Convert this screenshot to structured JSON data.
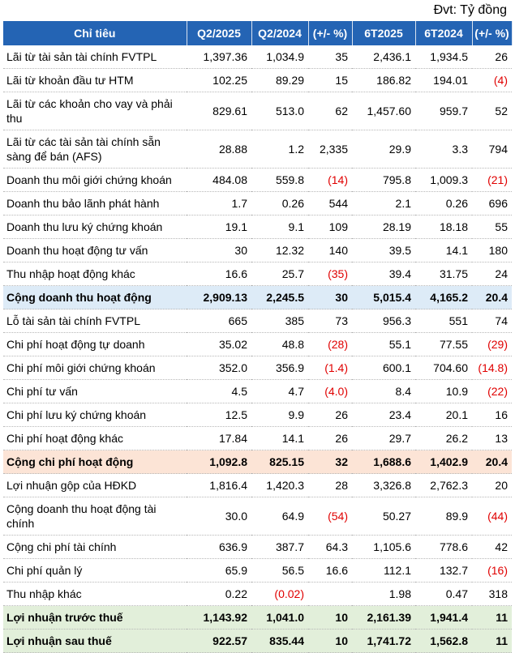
{
  "unit_label": "Đvt: Tỷ đồng",
  "headers": [
    "Chỉ tiêu",
    "Q2/2025",
    "Q2/2024",
    "(+/- %)",
    "6T2025",
    "6T2024",
    "(+/- %)"
  ],
  "rows": [
    {
      "cells": [
        "Lãi từ tài sản tài chính FVTPL",
        "1,397.36",
        "1,034.9",
        "35",
        "2,436.1",
        "1,934.5",
        "26"
      ],
      "style": "",
      "h": "h1",
      "neg": []
    },
    {
      "cells": [
        "Lãi từ khoản đầu tư HTM",
        "102.25",
        "89.29",
        "15",
        "186.82",
        "194.01",
        "(4)"
      ],
      "style": "",
      "h": "h1",
      "neg": [
        6
      ]
    },
    {
      "cells": [
        "Lãi từ các khoản cho vay và phải thu",
        "829.61",
        "513.0",
        "62",
        "1,457.60",
        "959.7",
        "52"
      ],
      "style": "",
      "h": "h2",
      "neg": []
    },
    {
      "cells": [
        "Lãi từ các tài sản tài chính sẵn sàng để bán (AFS)",
        "28.88",
        "1.2",
        "2,335",
        "29.9",
        "3.3",
        "794"
      ],
      "style": "",
      "h": "h2",
      "neg": []
    },
    {
      "cells": [
        "Doanh thu môi giới chứng khoán",
        "484.08",
        "559.8",
        "(14)",
        "795.8",
        "1,009.3",
        "(21)"
      ],
      "style": "",
      "h": "h1",
      "neg": [
        3,
        6
      ]
    },
    {
      "cells": [
        "Doanh thu bảo lãnh phát hành",
        "1.7",
        "0.26",
        "544",
        "2.1",
        "0.26",
        "696"
      ],
      "style": "",
      "h": "h1",
      "neg": []
    },
    {
      "cells": [
        "Doanh thu lưu ký chứng khoán",
        "19.1",
        "9.1",
        "109",
        "28.19",
        "18.18",
        "55"
      ],
      "style": "",
      "h": "h1",
      "neg": []
    },
    {
      "cells": [
        "Doanh thu hoạt động tư vấn",
        "30",
        "12.32",
        "140",
        "39.5",
        "14.1",
        "180"
      ],
      "style": "",
      "h": "h1",
      "neg": []
    },
    {
      "cells": [
        "Thu nhập hoạt động khác",
        "16.6",
        "25.7",
        "(35)",
        "39.4",
        "31.75",
        "24"
      ],
      "style": "",
      "h": "h1",
      "neg": [
        3
      ]
    },
    {
      "cells": [
        "Cộng doanh thu hoạt động",
        "2,909.13",
        "2,245.5",
        "30",
        "5,015.4",
        "4,165.2",
        "20.4"
      ],
      "style": "blue",
      "h": "h3",
      "neg": []
    },
    {
      "cells": [
        "Lỗ tài sản tài chính FVTPL",
        "665",
        "385",
        "73",
        "956.3",
        "551",
        "74"
      ],
      "style": "",
      "h": "h1",
      "neg": []
    },
    {
      "cells": [
        "Chi phí hoạt động tự doanh",
        "35.02",
        "48.8",
        "(28)",
        "55.1",
        "77.55",
        "(29)"
      ],
      "style": "",
      "h": "h1",
      "neg": [
        3,
        6
      ]
    },
    {
      "cells": [
        "Chi phí môi giới chứng khoán",
        "352.0",
        "356.9",
        "(1.4)",
        "600.1",
        "704.60",
        "(14.8)"
      ],
      "style": "",
      "h": "h1",
      "neg": [
        3,
        6
      ]
    },
    {
      "cells": [
        "Chi phí tư vấn",
        "4.5",
        "4.7",
        "(4.0)",
        "8.4",
        "10.9",
        "(22)"
      ],
      "style": "",
      "h": "h1",
      "neg": [
        3,
        6
      ]
    },
    {
      "cells": [
        "Chi phí lưu ký chứng khoán",
        "12.5",
        "9.9",
        "26",
        "23.4",
        "20.1",
        "16"
      ],
      "style": "",
      "h": "h1",
      "neg": []
    },
    {
      "cells": [
        "Chi phí hoạt động khác",
        "17.84",
        "14.1",
        "26",
        "29.7",
        "26.2",
        "13"
      ],
      "style": "",
      "h": "h1",
      "neg": []
    },
    {
      "cells": [
        "Cộng chi phí hoạt động",
        "1,092.8",
        "825.15",
        "32",
        "1,688.6",
        "1,402.9",
        "20.4"
      ],
      "style": "peach",
      "h": "h3",
      "neg": []
    },
    {
      "cells": [
        "Lợi nhuận gộp của HĐKD",
        "1,816.4",
        "1,420.3",
        "28",
        "3,326.8",
        "2,762.3",
        "20"
      ],
      "style": "",
      "h": "h1",
      "neg": []
    },
    {
      "cells": [
        "Cộng doanh thu hoạt động tài chính",
        "30.0",
        "64.9",
        "(54)",
        "50.27",
        "89.9",
        "(44)"
      ],
      "style": "",
      "h": "h2",
      "neg": [
        3,
        6
      ]
    },
    {
      "cells": [
        "Cộng chi phí tài chính",
        "636.9",
        "387.7",
        "64.3",
        "1,105.6",
        "778.6",
        "42"
      ],
      "style": "",
      "h": "h1",
      "neg": []
    },
    {
      "cells": [
        "Chi phí quản lý",
        "65.9",
        "56.5",
        "16.6",
        "112.1",
        "132.7",
        "(16)"
      ],
      "style": "",
      "h": "h1",
      "neg": [
        6
      ]
    },
    {
      "cells": [
        "Thu nhập khác",
        "0.22",
        "(0.02)",
        "",
        "1.98",
        "0.47",
        "318"
      ],
      "style": "",
      "h": "h1",
      "neg": [
        2
      ]
    },
    {
      "cells": [
        "Lợi nhuận trước thuế",
        "1,143.92",
        "1,041.0",
        "10",
        "2,161.39",
        "1,941.4",
        "11"
      ],
      "style": "green",
      "h": "h3",
      "neg": []
    },
    {
      "cells": [
        "Lợi nhuận sau thuế",
        "922.57",
        "835.44",
        "10",
        "1,741.72",
        "1,562.8",
        "11"
      ],
      "style": "green",
      "h": "h3",
      "neg": []
    }
  ]
}
